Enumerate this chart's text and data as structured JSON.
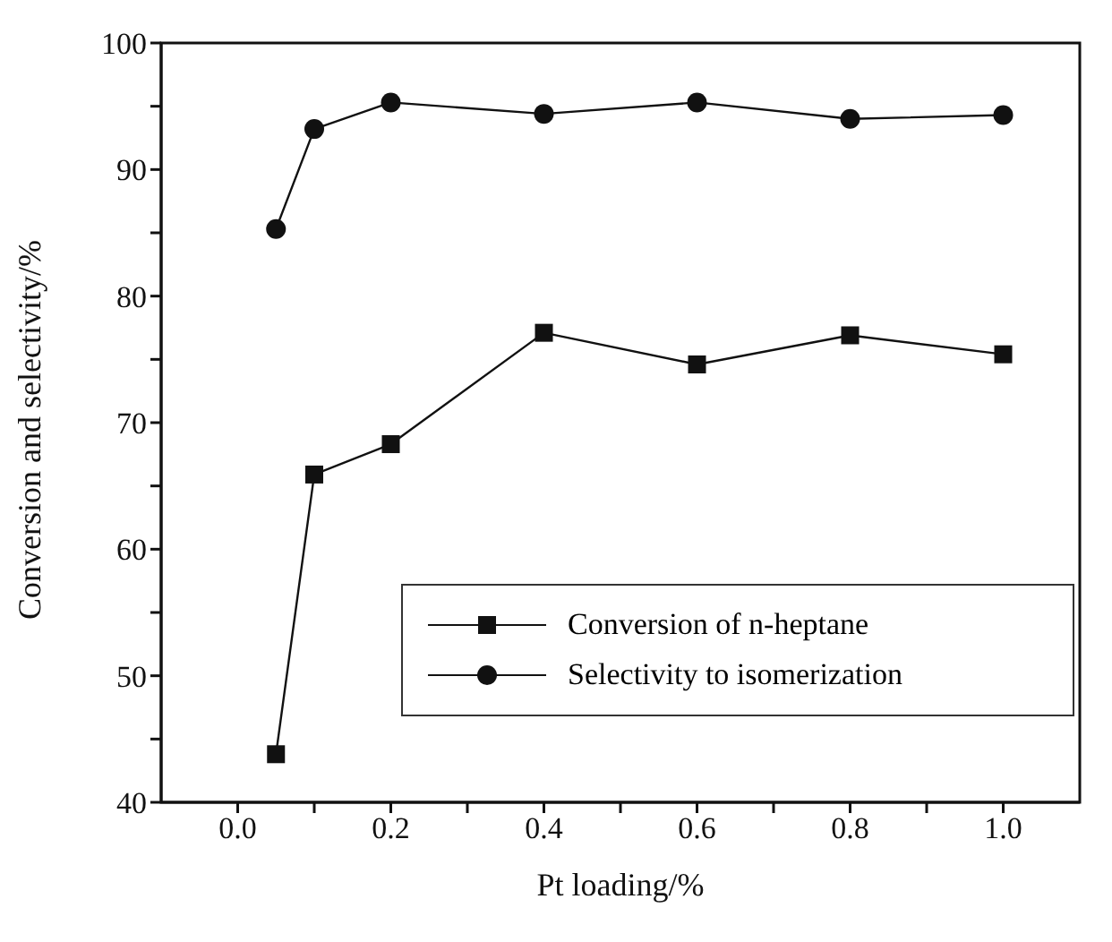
{
  "chart_data": {
    "type": "line",
    "xlabel": "Pt loading/%",
    "ylabel": "Conversion and selectivity/%",
    "x": [
      0.05,
      0.1,
      0.2,
      0.4,
      0.6,
      0.8,
      1.0
    ],
    "series": [
      {
        "name": "Conversion of n-heptane",
        "color": "#111111",
        "marker": "square",
        "values": [
          43.8,
          65.9,
          68.3,
          77.1,
          74.6,
          76.9,
          75.4
        ]
      },
      {
        "name": "Selectivity to isomerization",
        "color": "#111111",
        "marker": "circle",
        "values": [
          85.3,
          93.2,
          95.3,
          94.4,
          95.3,
          94.0,
          94.3
        ]
      }
    ],
    "xlim": [
      -0.1,
      1.1
    ],
    "xticks": [
      {
        "value": 0,
        "label": "0.0"
      },
      {
        "value": 0.1,
        "label": null
      },
      0.2,
      {
        "value": 0.3,
        "label": null
      },
      0.4,
      {
        "value": 0.5,
        "label": null
      },
      0.6,
      {
        "value": 0.7,
        "label": null
      },
      0.8,
      {
        "value": 0.9,
        "label": null
      },
      {
        "value": 1,
        "label": "1.0"
      }
    ],
    "ylim": [
      40,
      100
    ],
    "yticks": [
      40,
      {
        "value": 45,
        "label": null
      },
      50,
      {
        "value": 55,
        "label": null
      },
      60,
      {
        "value": 65,
        "label": null
      },
      70,
      {
        "value": 75,
        "label": null
      },
      80,
      {
        "value": 85,
        "label": null
      },
      90,
      {
        "value": 95,
        "label": null
      },
      100
    ],
    "grid": false,
    "legend": "bottom right",
    "line_style": "solid"
  }
}
